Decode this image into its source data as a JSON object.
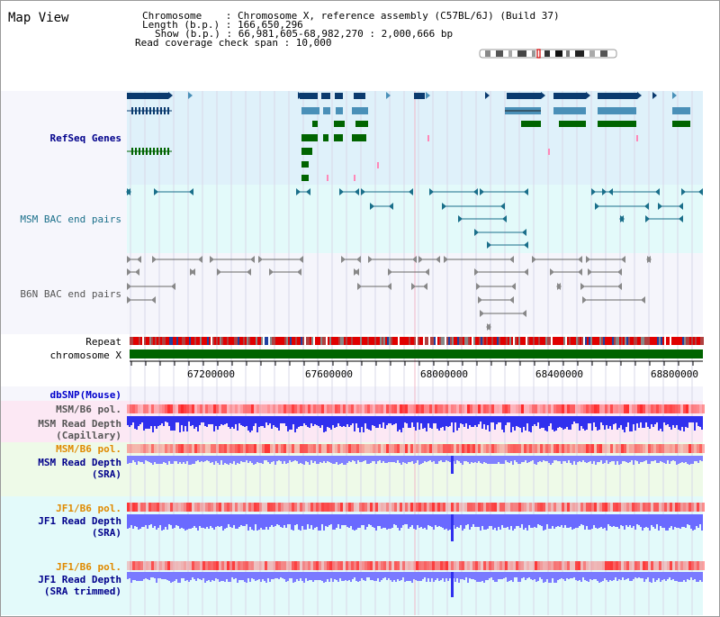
{
  "header": {
    "title": "Map View",
    "chromosome_line": "Chromosome    : Chromosome X, reference assembly (C57BL/6J) (Build 37)",
    "length_line": "Length (b.p.) : 166,650,296",
    "show_line": "Show (b.p.) : 66,981,605-68,982,270 : 2,000,666 bp",
    "coverage_line": "Read coverage check span : 10,000"
  },
  "tracks": {
    "refseq": {
      "label": "RefSeq Genes",
      "color": "#00008b"
    },
    "msm_bac": {
      "label": "MSM BAC end pairs",
      "color": "#1a6f8a"
    },
    "b6n_bac": {
      "label": "B6N BAC end pairs",
      "color": "#555555"
    },
    "repeat": {
      "label": "Repeat"
    },
    "chromosome": {
      "label": "chromosome X"
    },
    "dbsnp": {
      "label": "dbSNP(Mouse)",
      "color": "#0000cc"
    },
    "msm_b6_pol_1": {
      "label": "MSM/B6 pol.",
      "color": "#555555"
    },
    "msm_read_depth_cap": {
      "label": "MSM Read Depth\n(Capillary)",
      "color": "#555555"
    },
    "msm_b6_pol_2": {
      "label": "MSM/B6 pol.",
      "color": "#e08a00"
    },
    "msm_read_depth_sra": {
      "label": "MSM Read Depth\n(SRA)",
      "color": "#00008b"
    },
    "jf1_b6_pol_1": {
      "label": "JF1/B6 pol.",
      "color": "#e08a00"
    },
    "jf1_read_depth_sra": {
      "label": "JF1 Read Depth\n(SRA)",
      "color": "#00008b"
    },
    "jf1_b6_pol_2": {
      "label": "JF1/B6 pol.",
      "color": "#e08a00"
    },
    "jf1_read_depth_trim": {
      "label": "JF1 Read Depth\n(SRA trimmed)",
      "color": "#00008b"
    }
  },
  "axis": {
    "ticks": [
      "67200000",
      "67600000",
      "68000000",
      "68400000",
      "68800000"
    ]
  },
  "colors": {
    "refseq_dark": "#0a3a6e",
    "refseq_light": "#4a90b8",
    "refseq_green": "#006400",
    "msm_bac_line": "#1a6f8a",
    "b6n_bac_line": "#666666",
    "repeat_red": "#e00000",
    "chromosome_green": "#006400",
    "depth_blue": "#3030ee",
    "depth_blue_light": "#8080ff",
    "pol_red": "#ff3030"
  }
}
